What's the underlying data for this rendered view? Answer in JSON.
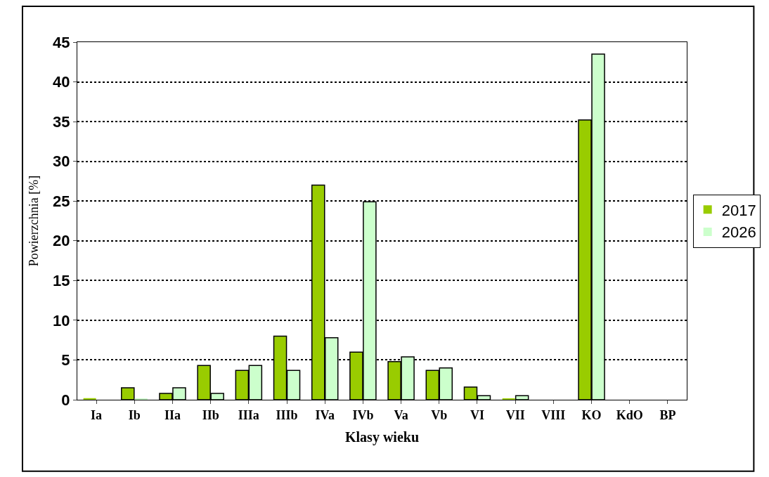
{
  "chart_data": {
    "type": "bar",
    "xlabel": "Klasy wieku",
    "ylabel": "Powierzchnia [%]",
    "categories": [
      "Ia",
      "Ib",
      "IIa",
      "IIb",
      "IIIa",
      "IIIb",
      "IVa",
      "IVb",
      "Va",
      "Vb",
      "VI",
      "VII",
      "VIII",
      "KO",
      "KdO",
      "BP"
    ],
    "series": [
      {
        "name": "2017",
        "color": "#99cc00",
        "values": [
          0.2,
          1.5,
          0.8,
          4.3,
          3.7,
          8.0,
          27.0,
          6.0,
          4.8,
          3.7,
          1.6,
          0.1,
          0,
          35.2,
          0,
          0
        ]
      },
      {
        "name": "2026",
        "color": "#ccffcc",
        "values": [
          0,
          0.1,
          1.5,
          0.8,
          4.3,
          3.7,
          7.8,
          24.9,
          5.4,
          4.0,
          0.5,
          0.5,
          0,
          43.5,
          0,
          0
        ]
      }
    ],
    "ylim": [
      0,
      45
    ],
    "yticks": [
      0,
      5,
      10,
      15,
      20,
      25,
      30,
      35,
      40,
      45
    ],
    "grid": "y",
    "legend": "right",
    "line_style": "dotted"
  }
}
